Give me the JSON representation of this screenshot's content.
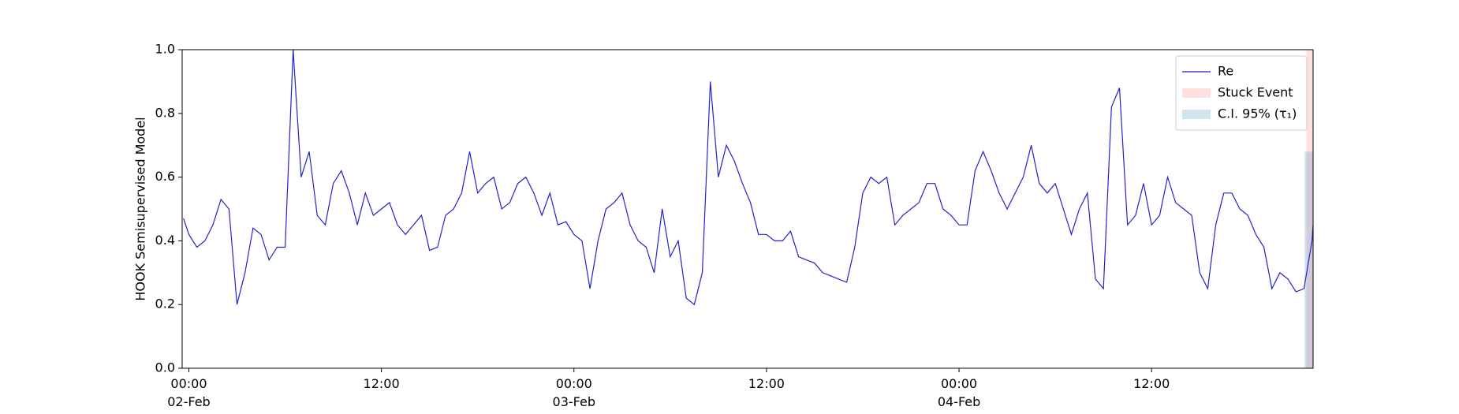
{
  "chart_data": {
    "type": "line",
    "ylabel": "HOOK Semisupervised Model",
    "xlim": [
      "1900-02-01T23:35",
      "1900-02-04T22:04"
    ],
    "ylim": [
      0,
      1
    ],
    "yticks": [
      {
        "value": 0,
        "label": "0.0"
      },
      0.2,
      0.4,
      0.6,
      0.8,
      {
        "value": 1,
        "label": "1.0"
      }
    ],
    "xticks": [
      {
        "value": "1900-02-02T00:00",
        "label": "00:00\n02-Feb\n1900"
      },
      {
        "value": "1900-02-02T12:00",
        "label": "12:00"
      },
      {
        "value": "1900-02-03T00:00",
        "label": "00:00\n03-Feb"
      },
      {
        "value": "1900-02-03T12:00",
        "label": "12:00"
      },
      {
        "value": "1900-02-04T00:00",
        "label": "00:00\n04-Feb"
      },
      {
        "value": "1900-02-04T12:00",
        "label": "12:00"
      }
    ],
    "grid": false,
    "legend": "upper right",
    "x": [
      "1900-02-01T23:40",
      "1900-02-02T00:00",
      "1900-02-02T00:30",
      "1900-02-02T01:00",
      "1900-02-02T01:30",
      "1900-02-02T02:00",
      "1900-02-02T02:30",
      "1900-02-02T03:00",
      "1900-02-02T03:30",
      "1900-02-02T04:00",
      "1900-02-02T04:30",
      "1900-02-02T05:00",
      "1900-02-02T05:30",
      "1900-02-02T06:00",
      "1900-02-02T06:30",
      "1900-02-02T07:00",
      "1900-02-02T07:30",
      "1900-02-02T08:00",
      "1900-02-02T08:30",
      "1900-02-02T09:00",
      "1900-02-02T09:30",
      "1900-02-02T10:00",
      "1900-02-02T10:30",
      "1900-02-02T11:00",
      "1900-02-02T11:30",
      "1900-02-02T12:00",
      "1900-02-02T12:30",
      "1900-02-02T13:00",
      "1900-02-02T13:30",
      "1900-02-02T14:00",
      "1900-02-02T14:30",
      "1900-02-02T15:00",
      "1900-02-02T15:30",
      "1900-02-02T16:00",
      "1900-02-02T16:30",
      "1900-02-02T17:00",
      "1900-02-02T17:30",
      "1900-02-02T18:00",
      "1900-02-02T18:30",
      "1900-02-02T19:00",
      "1900-02-02T19:30",
      "1900-02-02T20:00",
      "1900-02-02T20:30",
      "1900-02-02T21:00",
      "1900-02-02T21:30",
      "1900-02-02T22:00",
      "1900-02-02T22:30",
      "1900-02-02T23:00",
      "1900-02-02T23:30",
      "1900-02-03T00:00",
      "1900-02-03T00:30",
      "1900-02-03T01:00",
      "1900-02-03T01:30",
      "1900-02-03T02:00",
      "1900-02-03T02:30",
      "1900-02-03T03:00",
      "1900-02-03T03:30",
      "1900-02-03T04:00",
      "1900-02-03T04:30",
      "1900-02-03T05:00",
      "1900-02-03T05:30",
      "1900-02-03T06:00",
      "1900-02-03T06:30",
      "1900-02-03T07:00",
      "1900-02-03T07:30",
      "1900-02-03T08:00",
      "1900-02-03T08:30",
      "1900-02-03T09:00",
      "1900-02-03T09:30",
      "1900-02-03T10:00",
      "1900-02-03T10:30",
      "1900-02-03T11:00",
      "1900-02-03T11:30",
      "1900-02-03T12:00",
      "1900-02-03T12:30",
      "1900-02-03T13:00",
      "1900-02-03T13:30",
      "1900-02-03T14:00",
      "1900-02-03T14:30",
      "1900-02-03T15:00",
      "1900-02-03T15:30",
      "1900-02-03T16:00",
      "1900-02-03T16:30",
      "1900-02-03T17:00",
      "1900-02-03T17:30",
      "1900-02-03T18:00",
      "1900-02-03T18:30",
      "1900-02-03T19:00",
      "1900-02-03T19:30",
      "1900-02-03T20:00",
      "1900-02-03T20:30",
      "1900-02-03T21:00",
      "1900-02-03T21:30",
      "1900-02-03T22:00",
      "1900-02-03T22:30",
      "1900-02-03T23:00",
      "1900-02-03T23:30",
      "1900-02-04T00:00",
      "1900-02-04T00:30",
      "1900-02-04T01:00",
      "1900-02-04T01:30",
      "1900-02-04T02:00",
      "1900-02-04T02:30",
      "1900-02-04T03:00",
      "1900-02-04T03:30",
      "1900-02-04T04:00",
      "1900-02-04T04:30",
      "1900-02-04T05:00",
      "1900-02-04T05:30",
      "1900-02-04T06:00",
      "1900-02-04T06:30",
      "1900-02-04T07:00",
      "1900-02-04T07:30",
      "1900-02-04T08:00",
      "1900-02-04T08:30",
      "1900-02-04T09:00",
      "1900-02-04T09:30",
      "1900-02-04T10:00",
      "1900-02-04T10:30",
      "1900-02-04T11:00",
      "1900-02-04T11:30",
      "1900-02-04T12:00",
      "1900-02-04T12:30",
      "1900-02-04T13:00",
      "1900-02-04T13:30",
      "1900-02-04T14:00",
      "1900-02-04T14:30",
      "1900-02-04T15:00",
      "1900-02-04T15:30",
      "1900-02-04T16:00",
      "1900-02-04T16:30",
      "1900-02-04T17:00",
      "1900-02-04T17:30",
      "1900-02-04T18:00",
      "1900-02-04T18:30",
      "1900-02-04T19:00",
      "1900-02-04T19:30",
      "1900-02-04T20:00",
      "1900-02-04T20:30",
      "1900-02-04T21:00",
      "1900-02-04T21:30",
      "1900-02-04T22:00",
      "1900-02-04T22:04"
    ],
    "series": [
      {
        "name": "Re",
        "color": "#2222cc",
        "values": [
          0.47,
          0.42,
          0.38,
          0.4,
          0.45,
          0.53,
          0.5,
          0.2,
          0.3,
          0.44,
          0.42,
          0.34,
          0.38,
          0.38,
          1.0,
          0.6,
          0.68,
          0.48,
          0.45,
          0.58,
          0.62,
          0.55,
          0.45,
          0.55,
          0.48,
          0.5,
          0.52,
          0.45,
          0.42,
          0.45,
          0.48,
          0.37,
          0.38,
          0.48,
          0.5,
          0.55,
          0.68,
          0.55,
          0.58,
          0.6,
          0.5,
          0.52,
          0.58,
          0.6,
          0.55,
          0.48,
          0.55,
          0.45,
          0.46,
          0.42,
          0.4,
          0.25,
          0.4,
          0.5,
          0.52,
          0.55,
          0.45,
          0.4,
          0.38,
          0.3,
          0.5,
          0.35,
          0.4,
          0.22,
          0.2,
          0.3,
          0.9,
          0.6,
          0.7,
          0.65,
          0.58,
          0.52,
          0.42,
          0.42,
          0.4,
          0.4,
          0.43,
          0.35,
          0.34,
          0.33,
          0.3,
          0.29,
          0.28,
          0.27,
          0.38,
          0.55,
          0.6,
          0.58,
          0.6,
          0.45,
          0.48,
          0.5,
          0.52,
          0.58,
          0.58,
          0.5,
          0.48,
          0.45,
          0.45,
          0.62,
          0.68,
          0.62,
          0.55,
          0.5,
          0.55,
          0.6,
          0.7,
          0.58,
          0.55,
          0.58,
          0.5,
          0.42,
          0.5,
          0.55,
          0.28,
          0.25,
          0.82,
          0.88,
          0.45,
          0.48,
          0.58,
          0.45,
          0.48,
          0.6,
          0.52,
          0.5,
          0.48,
          0.3,
          0.25,
          0.45,
          0.55,
          0.55,
          0.5,
          0.48,
          0.42,
          0.38,
          0.25,
          0.3,
          0.28,
          0.24,
          0.25,
          0.4,
          0.45
        ]
      }
    ],
    "stuck_event": {
      "name": "Stuck Event",
      "color": "#ff0000",
      "x": [
        "1900-02-04T21:39",
        "1900-02-04T22:04"
      ]
    },
    "ci_band": {
      "name": "C.I. 95% (τ₁)",
      "color": "#1f77b4",
      "x": [
        "1900-02-04T21:32",
        "1900-02-04T22:04"
      ],
      "lower": 0,
      "upper": 0.68
    }
  }
}
